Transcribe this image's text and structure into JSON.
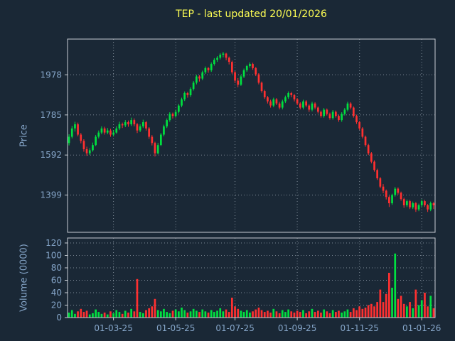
{
  "chart_data": {
    "type": "candlestick",
    "title": "TEP - last updated 20/01/2026",
    "ylabel_price": "Price",
    "ylabel_volume": "Volume (0000)",
    "x_tick_labels": [
      "01-03-25",
      "01-05-25",
      "01-07-25",
      "01-09-25",
      "01-11-25",
      "01-01-26"
    ],
    "x_tick_indices": [
      15,
      36,
      56,
      77,
      98,
      119
    ],
    "price_ticks": [
      1399,
      1592,
      1785,
      1978
    ],
    "price_range": [
      1220,
      2150
    ],
    "volume_ticks": [
      0,
      20,
      40,
      60,
      80,
      100,
      120
    ],
    "volume_range": [
      0,
      128
    ],
    "colors": {
      "background": "#1a2836",
      "title": "#ffff54",
      "label": "#85a5c8",
      "frame": "#c8cdd4",
      "grid": "#aab6c2",
      "up": "#00e040",
      "down": "#ff3030"
    },
    "candles": [
      [
        1650,
        1692,
        1638,
        1680
      ],
      [
        1680,
        1732,
        1672,
        1720
      ],
      [
        1720,
        1752,
        1705,
        1740
      ],
      [
        1740,
        1748,
        1682,
        1690
      ],
      [
        1690,
        1698,
        1648,
        1660
      ],
      [
        1660,
        1668,
        1608,
        1620
      ],
      [
        1620,
        1632,
        1588,
        1600
      ],
      [
        1600,
        1625,
        1592,
        1615
      ],
      [
        1615,
        1652,
        1608,
        1640
      ],
      [
        1640,
        1688,
        1635,
        1680
      ],
      [
        1680,
        1710,
        1672,
        1700
      ],
      [
        1700,
        1730,
        1692,
        1720
      ],
      [
        1720,
        1728,
        1690,
        1700
      ],
      [
        1700,
        1722,
        1692,
        1710
      ],
      [
        1710,
        1718,
        1680,
        1690
      ],
      [
        1690,
        1712,
        1682,
        1700
      ],
      [
        1700,
        1730,
        1695,
        1720
      ],
      [
        1720,
        1752,
        1712,
        1740
      ],
      [
        1740,
        1748,
        1722,
        1735
      ],
      [
        1735,
        1760,
        1726,
        1750
      ],
      [
        1750,
        1758,
        1728,
        1740
      ],
      [
        1740,
        1772,
        1732,
        1760
      ],
      [
        1760,
        1768,
        1730,
        1740
      ],
      [
        1740,
        1746,
        1698,
        1710
      ],
      [
        1710,
        1740,
        1702,
        1730
      ],
      [
        1730,
        1762,
        1722,
        1750
      ],
      [
        1750,
        1756,
        1710,
        1720
      ],
      [
        1720,
        1726,
        1670,
        1680
      ],
      [
        1680,
        1688,
        1638,
        1650
      ],
      [
        1650,
        1656,
        1585,
        1600
      ],
      [
        1600,
        1650,
        1595,
        1640
      ],
      [
        1640,
        1698,
        1635,
        1690
      ],
      [
        1690,
        1738,
        1682,
        1730
      ],
      [
        1730,
        1768,
        1722,
        1760
      ],
      [
        1760,
        1798,
        1752,
        1790
      ],
      [
        1790,
        1796,
        1768,
        1780
      ],
      [
        1780,
        1810,
        1772,
        1800
      ],
      [
        1800,
        1838,
        1792,
        1830
      ],
      [
        1830,
        1868,
        1822,
        1860
      ],
      [
        1860,
        1898,
        1852,
        1890
      ],
      [
        1890,
        1896,
        1868,
        1880
      ],
      [
        1880,
        1918,
        1872,
        1910
      ],
      [
        1910,
        1948,
        1902,
        1940
      ],
      [
        1940,
        1978,
        1932,
        1970
      ],
      [
        1970,
        1976,
        1946,
        1960
      ],
      [
        1960,
        1998,
        1952,
        1990
      ],
      [
        1990,
        2018,
        1982,
        2010
      ],
      [
        2010,
        2016,
        1988,
        2000
      ],
      [
        2000,
        2038,
        1992,
        2030
      ],
      [
        2030,
        2058,
        2022,
        2050
      ],
      [
        2050,
        2068,
        2040,
        2060
      ],
      [
        2060,
        2082,
        2052,
        2075
      ],
      [
        2075,
        2088,
        2062,
        2080
      ],
      [
        2080,
        2084,
        2048,
        2060
      ],
      [
        2060,
        2066,
        2028,
        2040
      ],
      [
        2040,
        2046,
        1982,
        1990
      ],
      [
        1990,
        1996,
        1938,
        1950
      ],
      [
        1950,
        1962,
        1918,
        1930
      ],
      [
        1930,
        1978,
        1925,
        1970
      ],
      [
        1970,
        2008,
        1962,
        2000
      ],
      [
        2000,
        2026,
        1992,
        2020
      ],
      [
        2020,
        2038,
        2012,
        2030
      ],
      [
        2030,
        2036,
        2002,
        2010
      ],
      [
        2010,
        2016,
        1972,
        1980
      ],
      [
        1980,
        1986,
        1932,
        1940
      ],
      [
        1940,
        1946,
        1892,
        1900
      ],
      [
        1900,
        1906,
        1862,
        1870
      ],
      [
        1870,
        1876,
        1840,
        1850
      ],
      [
        1850,
        1858,
        1820,
        1830
      ],
      [
        1830,
        1868,
        1822,
        1860
      ],
      [
        1860,
        1866,
        1832,
        1840
      ],
      [
        1840,
        1848,
        1812,
        1820
      ],
      [
        1820,
        1858,
        1812,
        1850
      ],
      [
        1850,
        1878,
        1842,
        1870
      ],
      [
        1870,
        1898,
        1862,
        1890
      ],
      [
        1890,
        1896,
        1870,
        1880
      ],
      [
        1880,
        1886,
        1850,
        1860
      ],
      [
        1860,
        1866,
        1832,
        1840
      ],
      [
        1840,
        1846,
        1812,
        1820
      ],
      [
        1820,
        1858,
        1812,
        1850
      ],
      [
        1850,
        1856,
        1822,
        1830
      ],
      [
        1830,
        1836,
        1800,
        1810
      ],
      [
        1810,
        1848,
        1802,
        1840
      ],
      [
        1840,
        1846,
        1812,
        1820
      ],
      [
        1820,
        1826,
        1792,
        1800
      ],
      [
        1800,
        1806,
        1772,
        1780
      ],
      [
        1780,
        1818,
        1772,
        1810
      ],
      [
        1810,
        1816,
        1782,
        1790
      ],
      [
        1790,
        1796,
        1762,
        1770
      ],
      [
        1770,
        1808,
        1762,
        1800
      ],
      [
        1800,
        1806,
        1772,
        1780
      ],
      [
        1780,
        1786,
        1752,
        1760
      ],
      [
        1760,
        1798,
        1752,
        1790
      ],
      [
        1790,
        1818,
        1782,
        1810
      ],
      [
        1810,
        1848,
        1802,
        1840
      ],
      [
        1840,
        1846,
        1812,
        1820
      ],
      [
        1820,
        1826,
        1772,
        1780
      ],
      [
        1780,
        1786,
        1742,
        1750
      ],
      [
        1750,
        1756,
        1712,
        1720
      ],
      [
        1720,
        1726,
        1672,
        1680
      ],
      [
        1680,
        1686,
        1632,
        1640
      ],
      [
        1640,
        1646,
        1592,
        1600
      ],
      [
        1600,
        1606,
        1552,
        1560
      ],
      [
        1560,
        1566,
        1512,
        1520
      ],
      [
        1520,
        1526,
        1472,
        1480
      ],
      [
        1480,
        1486,
        1432,
        1440
      ],
      [
        1440,
        1452,
        1408,
        1420
      ],
      [
        1420,
        1426,
        1378,
        1390
      ],
      [
        1390,
        1396,
        1342,
        1360
      ],
      [
        1360,
        1406,
        1352,
        1400
      ],
      [
        1400,
        1438,
        1392,
        1430
      ],
      [
        1430,
        1436,
        1402,
        1410
      ],
      [
        1410,
        1416,
        1372,
        1380
      ],
      [
        1380,
        1386,
        1338,
        1350
      ],
      [
        1350,
        1378,
        1342,
        1370
      ],
      [
        1370,
        1376,
        1332,
        1340
      ],
      [
        1340,
        1368,
        1332,
        1360
      ],
      [
        1360,
        1366,
        1318,
        1330
      ],
      [
        1330,
        1358,
        1322,
        1350
      ],
      [
        1350,
        1378,
        1342,
        1370
      ],
      [
        1370,
        1376,
        1342,
        1350
      ],
      [
        1350,
        1356,
        1318,
        1330
      ],
      [
        1330,
        1368,
        1322,
        1360
      ],
      [
        1360,
        1366,
        1332,
        1350
      ]
    ],
    "volumes": [
      8,
      12,
      6,
      10,
      14,
      9,
      11,
      5,
      7,
      13,
      9,
      6,
      8,
      5,
      10,
      7,
      12,
      9,
      6,
      11,
      8,
      14,
      10,
      62,
      9,
      7,
      12,
      15,
      18,
      30,
      12,
      10,
      14,
      9,
      7,
      11,
      13,
      10,
      16,
      12,
      8,
      10,
      14,
      11,
      9,
      13,
      10,
      8,
      12,
      9,
      11,
      15,
      10,
      13,
      9,
      32,
      18,
      14,
      11,
      9,
      12,
      8,
      10,
      13,
      16,
      12,
      9,
      11,
      8,
      14,
      10,
      7,
      12,
      9,
      13,
      10,
      8,
      11,
      9,
      12,
      7,
      10,
      14,
      9,
      11,
      8,
      13,
      10,
      7,
      12,
      9,
      11,
      8,
      10,
      13,
      9,
      15,
      12,
      18,
      14,
      16,
      20,
      22,
      18,
      25,
      45,
      25,
      38,
      72,
      48,
      103,
      30,
      35,
      22,
      18,
      25,
      15,
      45,
      20,
      28,
      40,
      18,
      35,
      15
    ]
  }
}
